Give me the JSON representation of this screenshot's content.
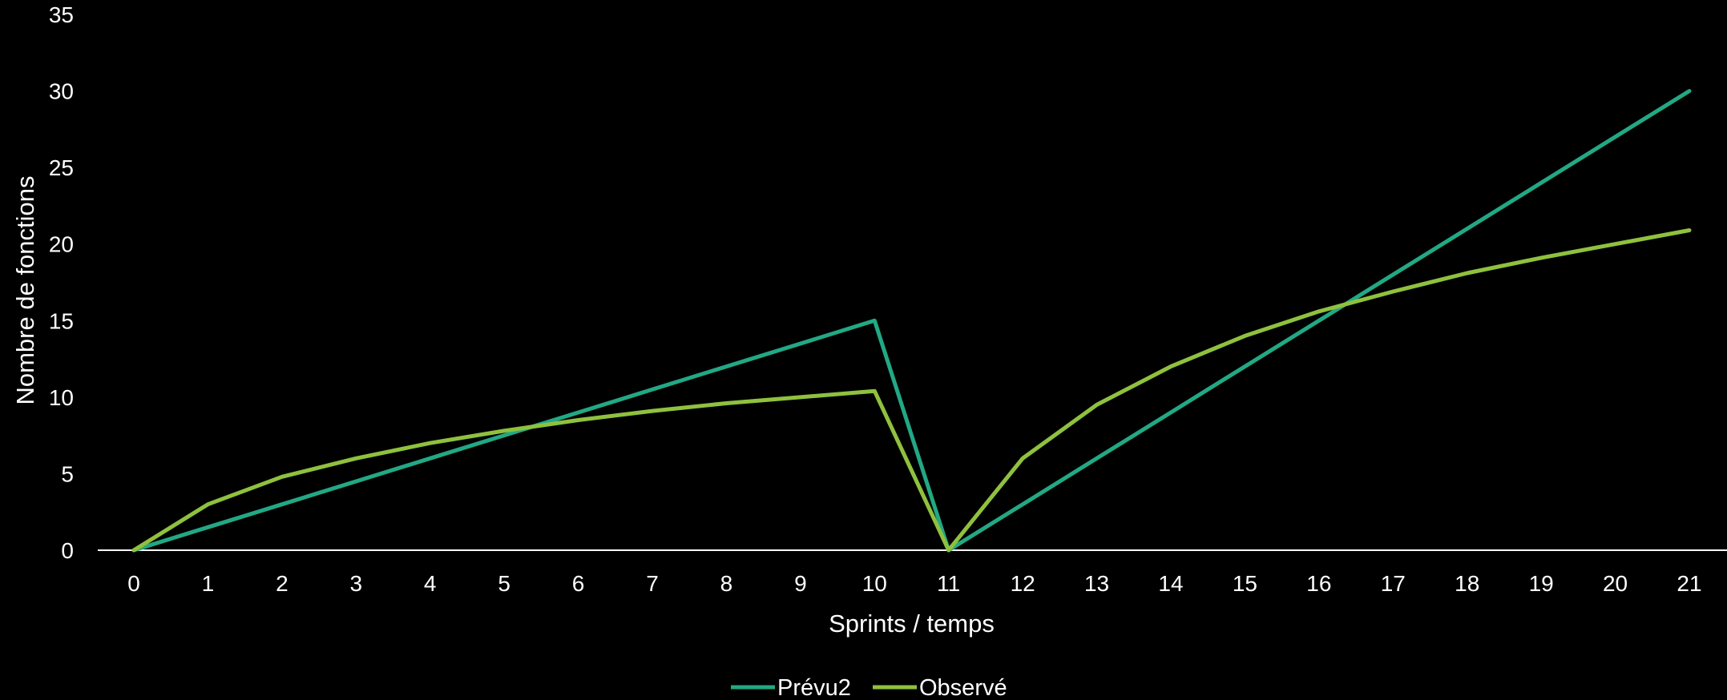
{
  "chart_data": {
    "type": "line",
    "xlabel": "Sprints / temps",
    "ylabel": "Nombre de fonctions",
    "categories": [
      "0",
      "1",
      "2",
      "3",
      "4",
      "5",
      "6",
      "7",
      "8",
      "9",
      "10",
      "11",
      "12",
      "13",
      "14",
      "15",
      "16",
      "17",
      "18",
      "19",
      "20",
      "21"
    ],
    "ylim": [
      0,
      35
    ],
    "yticks": [
      "0",
      "5",
      "10",
      "15",
      "20",
      "25",
      "30",
      "35"
    ],
    "grid": false,
    "legend_position": "bottom",
    "series": [
      {
        "name": "Prévu2",
        "color": "#22a884",
        "values": [
          0,
          1.5,
          3,
          4.5,
          6,
          7.5,
          9,
          10.5,
          12,
          13.5,
          15,
          0,
          3,
          6,
          9,
          12,
          15,
          18,
          21,
          24,
          27,
          30
        ]
      },
      {
        "name": "Observé",
        "color": "#8fc13e",
        "values": [
          0,
          3,
          4.8,
          6,
          7,
          7.8,
          8.5,
          9.1,
          9.6,
          10,
          10.4,
          0,
          6,
          9.5,
          12,
          14,
          15.6,
          16.9,
          18.1,
          19.1,
          20,
          20.9
        ]
      }
    ]
  }
}
